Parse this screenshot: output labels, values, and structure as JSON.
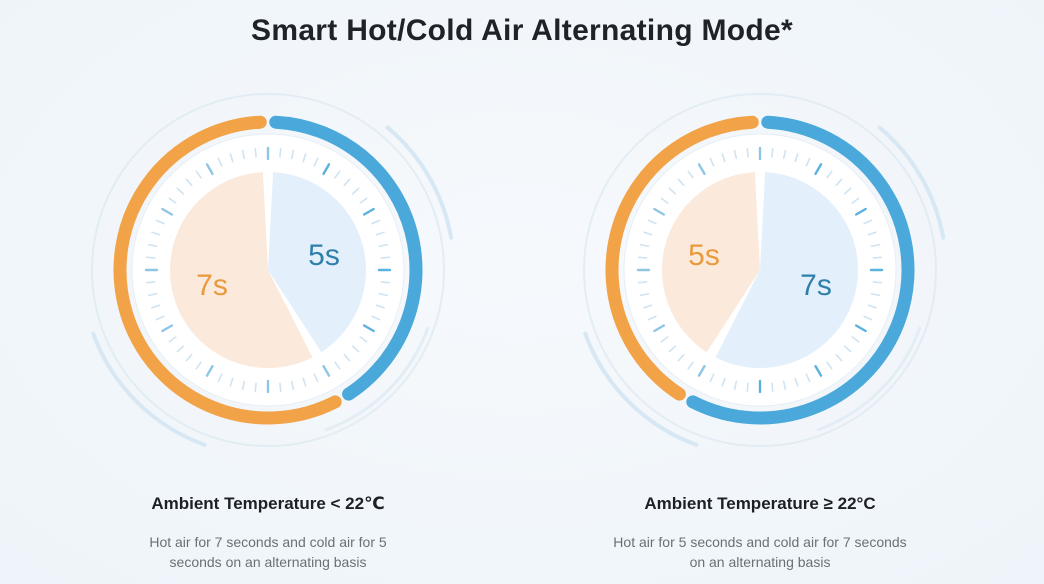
{
  "title": "Smart Hot/Cold Air Alternating Mode*",
  "colors": {
    "hot": "#f2a247",
    "hot_fill": "#fbe9dc",
    "cold": "#4aa8da",
    "cold_fill": "#e3f0fb",
    "hot_text": "#e99a3c",
    "cold_text": "#2f7fab"
  },
  "panels": [
    {
      "hot_seconds": 7,
      "cold_seconds": 5,
      "hot_label": "7s",
      "cold_label": "5s",
      "heading": "Ambient Temperature < 22℃",
      "description_line1": "Hot air for 7 seconds and cold air for 5",
      "description_line2": "seconds on an alternating basis"
    },
    {
      "hot_seconds": 5,
      "cold_seconds": 7,
      "hot_label": "5s",
      "cold_label": "7s",
      "heading": "Ambient Temperature ≥ 22°C",
      "description_line1": "Hot air for 5 seconds and cold air for 7 seconds",
      "description_line2": "on an alternating basis"
    }
  ]
}
